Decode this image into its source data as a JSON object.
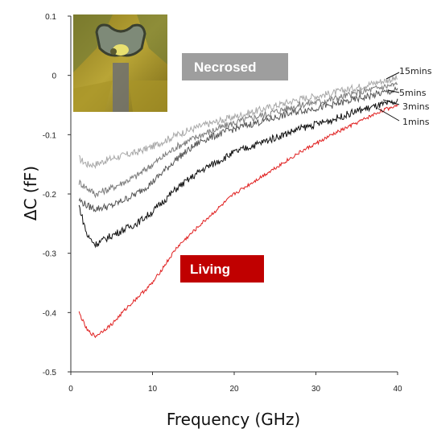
{
  "chart_data": {
    "type": "line",
    "xlabel": "Frequency (GHz)",
    "ylabel": "ΔC (fF)",
    "xlim": [
      0,
      40
    ],
    "ylim": [
      -0.5,
      0.1
    ],
    "xticks": [
      "0",
      "10",
      "20",
      "30",
      "40"
    ],
    "yticks": [
      "0.1",
      "0",
      "-0.1",
      "-0.2",
      "-0.3",
      "-0.4",
      "-0.5"
    ],
    "grid": false,
    "annotations": [
      {
        "text": "Necrosed",
        "color": "#9e9e9e"
      },
      {
        "text": "Living",
        "color": "#c00000"
      }
    ],
    "inset_image": "micrograph of electrode gap with cell",
    "series": [
      {
        "name": "15mins",
        "color": "#a8a8a8",
        "x": [
          1,
          2,
          3,
          5,
          8,
          10,
          13,
          16,
          20,
          24,
          28,
          32,
          35,
          38,
          40
        ],
        "y": [
          -0.14,
          -0.15,
          -0.15,
          -0.14,
          -0.13,
          -0.12,
          -0.1,
          -0.085,
          -0.07,
          -0.055,
          -0.04,
          -0.03,
          -0.02,
          -0.01,
          -0.005
        ]
      },
      {
        "name": "5mins",
        "color": "#7c7c7c",
        "x": [
          1,
          2,
          3,
          5,
          8,
          10,
          13,
          16,
          20,
          24,
          28,
          32,
          35,
          38,
          40
        ],
        "y": [
          -0.18,
          -0.19,
          -0.2,
          -0.19,
          -0.17,
          -0.15,
          -0.12,
          -0.1,
          -0.08,
          -0.065,
          -0.05,
          -0.04,
          -0.03,
          -0.02,
          -0.015
        ]
      },
      {
        "name": "3mins",
        "color": "#555555",
        "x": [
          1,
          2,
          3,
          5,
          8,
          10,
          13,
          16,
          20,
          24,
          28,
          32,
          35,
          38,
          40
        ],
        "y": [
          -0.21,
          -0.22,
          -0.225,
          -0.22,
          -0.2,
          -0.18,
          -0.14,
          -0.11,
          -0.09,
          -0.075,
          -0.06,
          -0.05,
          -0.04,
          -0.03,
          -0.025
        ]
      },
      {
        "name": "1mins",
        "color": "#111111",
        "x": [
          1,
          2,
          3,
          5,
          8,
          10,
          13,
          16,
          20,
          24,
          28,
          32,
          35,
          38,
          40
        ],
        "y": [
          -0.22,
          -0.27,
          -0.285,
          -0.27,
          -0.25,
          -0.23,
          -0.19,
          -0.16,
          -0.13,
          -0.11,
          -0.09,
          -0.075,
          -0.06,
          -0.05,
          -0.045
        ]
      },
      {
        "name": "Living",
        "color": "#e02020",
        "x": [
          1,
          2,
          3,
          5,
          7,
          10,
          13,
          16,
          20,
          24,
          28,
          32,
          35,
          38,
          40
        ],
        "y": [
          -0.4,
          -0.43,
          -0.44,
          -0.42,
          -0.39,
          -0.35,
          -0.29,
          -0.25,
          -0.2,
          -0.165,
          -0.13,
          -0.1,
          -0.08,
          -0.06,
          -0.05
        ]
      }
    ]
  }
}
